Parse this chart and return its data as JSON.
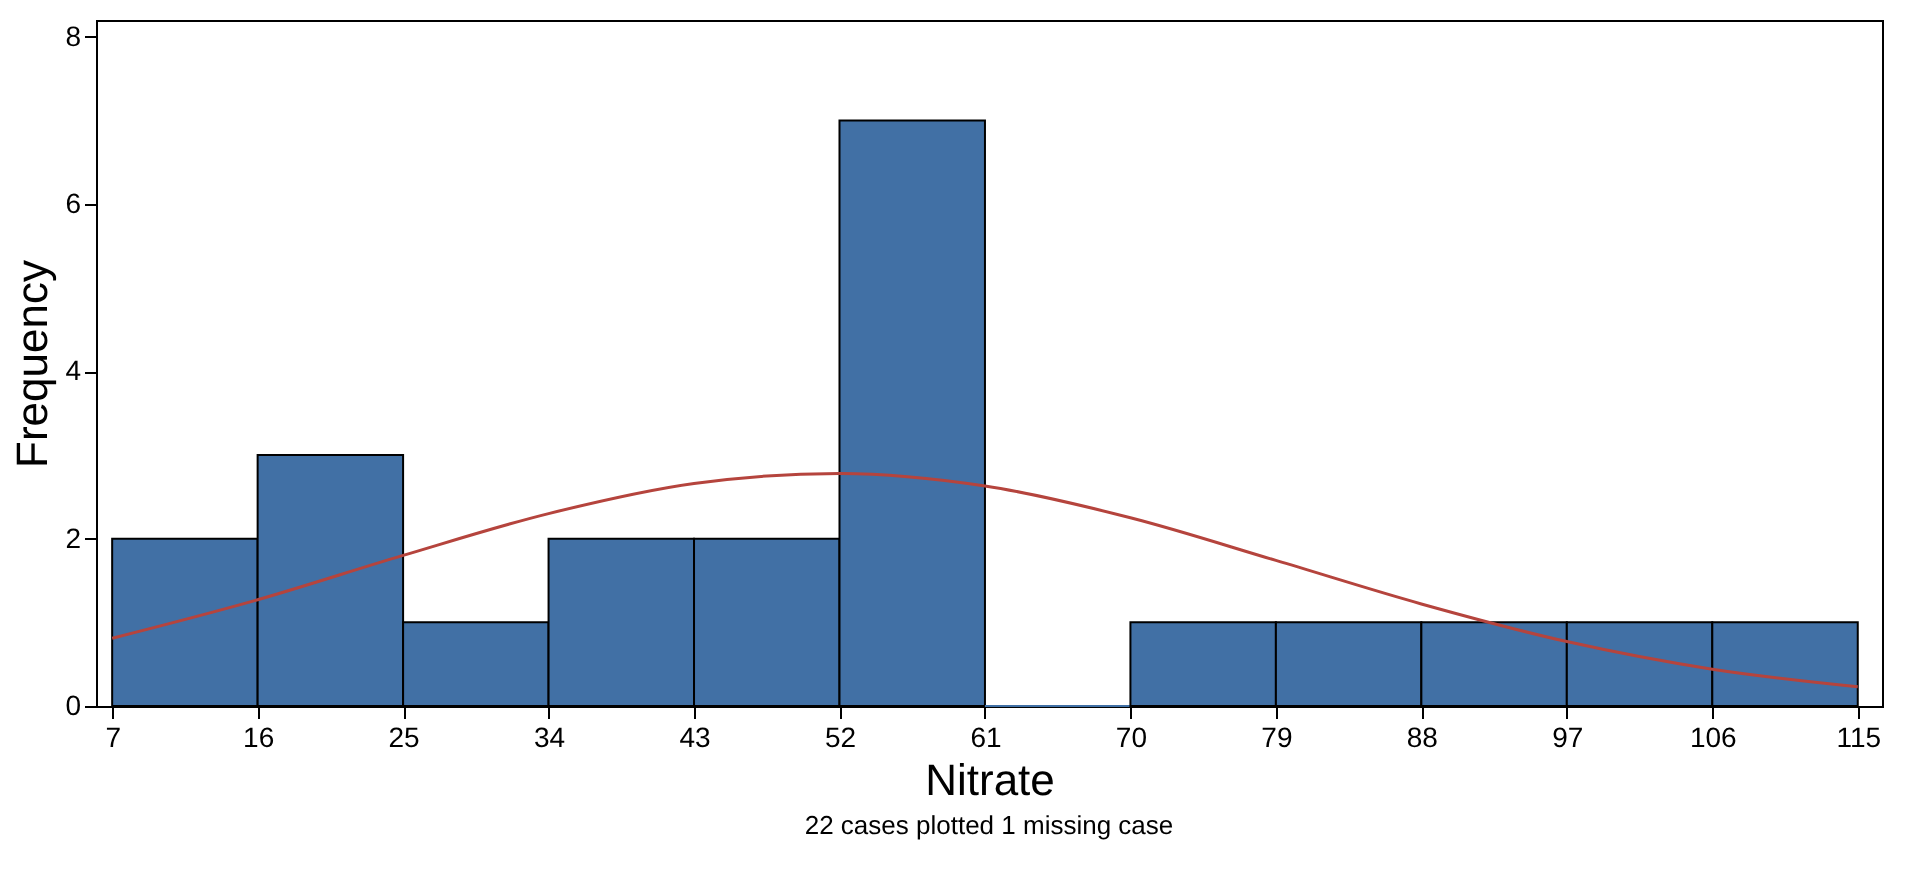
{
  "chart_data": {
    "type": "histogram",
    "xlabel": "Nitrate",
    "ylabel": "Frequency",
    "annotations": [
      "22 cases plotted   1 missing case"
    ],
    "bins": [
      7,
      16,
      25,
      34,
      43,
      52,
      61,
      70,
      79,
      88,
      97,
      106,
      115
    ],
    "values": [
      2,
      3,
      1,
      2,
      2,
      7,
      0,
      1,
      1,
      1,
      1,
      1
    ],
    "color": "#4170a5",
    "series": [
      {
        "type": "line",
        "color": "#b5443d",
        "x": [
          7,
          16,
          25,
          34,
          43,
          52,
          61,
          70,
          79,
          88,
          97,
          106,
          115
        ],
        "values": [
          0.81,
          1.27,
          1.8,
          2.3,
          2.66,
          2.78,
          2.63,
          2.25,
          1.74,
          1.22,
          0.77,
          0.44,
          0.23
        ]
      }
    ],
    "xlim": [
      6,
      116.5
    ],
    "xticks": [
      7,
      16,
      25,
      34,
      43,
      52,
      61,
      70,
      79,
      88,
      97,
      106,
      115
    ],
    "ylim": [
      0,
      8.2
    ],
    "yticks": [
      0,
      2,
      4,
      6,
      8
    ],
    "grid": false
  }
}
